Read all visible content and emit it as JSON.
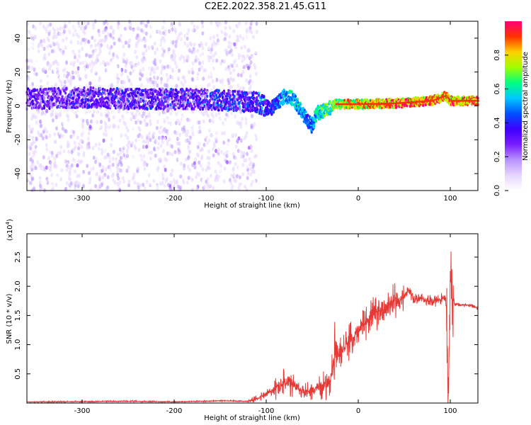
{
  "title": "C2E2.2022.358.21.45.G11",
  "colors": {
    "snr_line": "#e53935",
    "spectrogram_cmap": [
      "#ffffff",
      "#e6d5ff",
      "#b892ff",
      "#7a1cff",
      "#3d00ff",
      "#0050ff",
      "#00c8ff",
      "#00ff7f",
      "#a0ff00",
      "#ffd000",
      "#ff3300",
      "#ff0077"
    ]
  },
  "chart_data": [
    {
      "type": "heatmap",
      "panel": "spectrogram",
      "xlabel": "Height of straight line (km)",
      "ylabel": "Frequency (Hz)",
      "xlim": [
        -360,
        130
      ],
      "ylim": [
        -50,
        50
      ],
      "xticks": [
        -300,
        -200,
        -100,
        0,
        100
      ],
      "yticks": [
        -40,
        -20,
        0,
        20,
        40
      ],
      "colorbar": {
        "label": "Normalized spectral amplitude",
        "range": [
          0.0,
          1.0
        ],
        "ticks": [
          0.0,
          0.2,
          0.4,
          0.6,
          0.8
        ]
      },
      "ridge": [
        {
          "x": -360,
          "f": 4,
          "amp": 0.28
        },
        {
          "x": -300,
          "f": 5,
          "amp": 0.3
        },
        {
          "x": -240,
          "f": 4,
          "amp": 0.3
        },
        {
          "x": -180,
          "f": 4,
          "amp": 0.32
        },
        {
          "x": -140,
          "f": 3,
          "amp": 0.35
        },
        {
          "x": -110,
          "f": 2,
          "amp": 0.38
        },
        {
          "x": -95,
          "f": -2,
          "amp": 0.4
        },
        {
          "x": -80,
          "f": 6,
          "amp": 0.55
        },
        {
          "x": -70,
          "f": 4,
          "amp": 0.55
        },
        {
          "x": -60,
          "f": -5,
          "amp": 0.55
        },
        {
          "x": -50,
          "f": -12,
          "amp": 0.45
        },
        {
          "x": -45,
          "f": -4,
          "amp": 0.6
        },
        {
          "x": -35,
          "f": -3,
          "amp": 0.65
        },
        {
          "x": -25,
          "f": 1,
          "amp": 0.75
        },
        {
          "x": 0,
          "f": 1,
          "amp": 0.85
        },
        {
          "x": 40,
          "f": 1.5,
          "amp": 0.88
        },
        {
          "x": 80,
          "f": 3,
          "amp": 0.9
        },
        {
          "x": 95,
          "f": 6,
          "amp": 0.85
        },
        {
          "x": 100,
          "f": 3,
          "amp": 0.9
        },
        {
          "x": 130,
          "f": 3,
          "amp": 0.9
        }
      ]
    },
    {
      "type": "line",
      "panel": "snr",
      "xlabel": "Height of straight line (km)",
      "ylabel": "SNR (10 * v/v)",
      "y_multiplier_label": "(x10",
      "y_multiplier_exp": "4",
      "y_multiplier_close": ")",
      "xlim": [
        -360,
        130
      ],
      "ylim": [
        0,
        2.9
      ],
      "xticks": [
        -300,
        -200,
        -100,
        0,
        100
      ],
      "yticks": [
        0.5,
        1.0,
        1.5,
        2.0,
        2.5
      ],
      "x": [
        -360,
        -250,
        -200,
        -150,
        -120,
        -110,
        -100,
        -90,
        -80,
        -70,
        -60,
        -50,
        -40,
        -30,
        -25,
        -20,
        -10,
        0,
        10,
        20,
        30,
        40,
        50,
        55,
        60,
        70,
        80,
        90,
        95,
        98,
        100,
        102,
        105,
        110,
        120,
        130
      ],
      "y": [
        0.02,
        0.03,
        0.02,
        0.04,
        0.03,
        0.08,
        0.15,
        0.25,
        0.35,
        0.28,
        0.2,
        0.22,
        0.28,
        0.4,
        0.8,
        0.85,
        1.05,
        1.2,
        1.45,
        1.55,
        1.65,
        1.75,
        1.8,
        1.95,
        1.78,
        1.78,
        1.75,
        1.78,
        1.8,
        0.1,
        2.3,
        1.8,
        1.7,
        1.68,
        1.68,
        1.62
      ]
    }
  ]
}
